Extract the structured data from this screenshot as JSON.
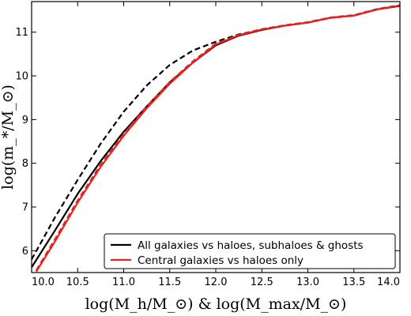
{
  "chart_data": {
    "type": "line",
    "xlabel": "log(M_h/M_⊙) & log(M_max/M_⊙)",
    "ylabel": "log(m_*/M_⊙)",
    "xlim": [
      10.0,
      14.0
    ],
    "ylim": [
      5.5,
      11.7
    ],
    "xticks": [
      "10.0",
      "10.5",
      "11.0",
      "11.5",
      "12.0",
      "12.5",
      "13.0",
      "13.5",
      "14.0"
    ],
    "yticks": [
      "6",
      "7",
      "8",
      "9",
      "10",
      "11"
    ],
    "grid": false,
    "legend_position": "bottom-right",
    "legend": [
      "All galaxies vs haloes, subhaloes & ghosts",
      "Central galaxies vs haloes only"
    ],
    "colors": {
      "all": "#000000",
      "central": "#e8201e"
    },
    "series": [
      {
        "name": "All galaxies vs haloes, subhaloes & ghosts",
        "color": "#000000",
        "style": "solid",
        "x": [
          10.0,
          10.25,
          10.5,
          10.75,
          11.0,
          11.25,
          11.5,
          11.75,
          12.0,
          12.25,
          12.5,
          12.75,
          13.0,
          13.25,
          13.5,
          13.75,
          14.0
        ],
        "y": [
          5.62,
          6.45,
          7.3,
          8.05,
          8.72,
          9.3,
          9.85,
          10.3,
          10.7,
          10.92,
          11.05,
          11.15,
          11.22,
          11.33,
          11.38,
          11.52,
          11.6
        ]
      },
      {
        "name": "All galaxies vs haloes, subhaloes & ghosts",
        "color": "#000000",
        "style": "dashed",
        "x": [
          10.0,
          10.25,
          10.5,
          10.75,
          11.0,
          11.25,
          11.5,
          11.75,
          12.0,
          12.25,
          12.5,
          12.75,
          13.0,
          13.25,
          13.5,
          13.75,
          14.0
        ],
        "y": [
          5.8,
          6.75,
          7.62,
          8.45,
          9.18,
          9.78,
          10.25,
          10.58,
          10.78,
          10.95,
          11.06,
          11.15,
          11.22,
          11.33,
          11.38,
          11.52,
          11.61
        ]
      },
      {
        "name": "Central galaxies vs haloes only",
        "color": "#e8201e",
        "style": "solid",
        "x": [
          10.05,
          10.25,
          10.5,
          10.75,
          11.0,
          11.25,
          11.5,
          11.75,
          12.0,
          12.25,
          12.5,
          12.75,
          13.0,
          13.25,
          13.5,
          13.75,
          14.0
        ],
        "y": [
          5.52,
          6.2,
          7.1,
          7.92,
          8.63,
          9.26,
          9.82,
          10.3,
          10.72,
          10.93,
          11.06,
          11.15,
          11.22,
          11.33,
          11.38,
          11.52,
          11.61
        ]
      },
      {
        "name": "Central galaxies vs haloes only",
        "color": "#e8201e",
        "style": "dashed",
        "x": [
          10.05,
          10.25,
          10.5,
          10.75,
          11.0,
          11.25,
          11.5,
          11.75,
          12.0,
          12.25,
          12.5,
          12.75,
          13.0,
          13.25,
          13.5,
          13.75,
          14.0
        ],
        "y": [
          5.55,
          6.25,
          7.15,
          7.97,
          8.67,
          9.3,
          9.86,
          10.33,
          10.74,
          10.94,
          11.07,
          11.16,
          11.23,
          11.34,
          11.39,
          11.53,
          11.62
        ]
      }
    ]
  }
}
